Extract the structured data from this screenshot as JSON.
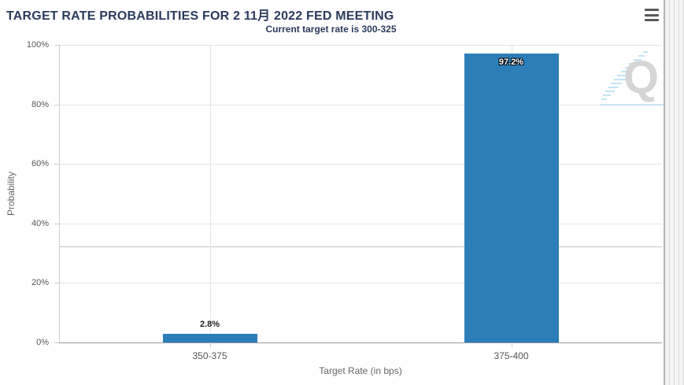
{
  "header": {
    "title": "TARGET RATE PROBABILITIES FOR 2 11月 2022 FED MEETING",
    "subtitle": "Current target rate is 300-325",
    "menu_icon": "hamburger-menu"
  },
  "chart_data": {
    "type": "bar",
    "title": "TARGET RATE PROBABILITIES FOR 2 11月 2022 FED MEETING",
    "subtitle": "Current target rate is 300-325",
    "categories": [
      "350-375",
      "375-400"
    ],
    "values": [
      2.8,
      97.2
    ],
    "value_labels": [
      "2.8%",
      "97.2%"
    ],
    "xlabel": "Target Rate (in bps)",
    "ylabel": "Probability",
    "ylim": [
      0,
      100
    ],
    "yticks": [
      0,
      20,
      40,
      60,
      80,
      100
    ],
    "ytick_labels": [
      "0%",
      "20%",
      "40%",
      "60%",
      "80%",
      "100%"
    ],
    "grid": true,
    "legend": "none",
    "bar_color": "#2b7eb8",
    "reference_line": {
      "value": 32.3,
      "color": "#c4c4c4"
    }
  },
  "watermark": {
    "letter": "Q"
  },
  "colors": {
    "title_text": "#2b3a5c",
    "bar": "#2b7eb8",
    "gridline": "#e5e5e5",
    "axis_text": "#555555",
    "axis_title_text": "#666666"
  }
}
